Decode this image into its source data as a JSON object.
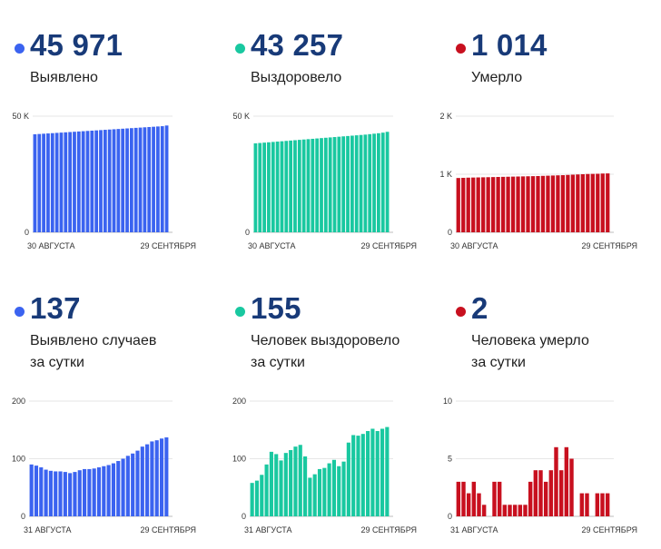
{
  "colors": {
    "blue": "#3b63f0",
    "green": "#19c8a0",
    "red": "#c8101f",
    "number": "#183a78"
  },
  "chart_data": [
    {
      "id": "c0",
      "type": "bar",
      "color_key": "blue",
      "headline": "45 971",
      "label_lines": [
        "Выявлено"
      ],
      "ylim": [
        0,
        50000
      ],
      "y_ticks": [
        0,
        50000
      ],
      "y_tick_labels": [
        "0",
        "50 K"
      ],
      "x_tick_labels": [
        "30 АВГУСТА",
        "29 СЕНТЯБРЯ"
      ],
      "values": [
        42200,
        42320,
        42440,
        42560,
        42680,
        42800,
        42920,
        43040,
        43160,
        43280,
        43400,
        43520,
        43640,
        43760,
        43880,
        44000,
        44120,
        44240,
        44360,
        44480,
        44600,
        44720,
        44840,
        44960,
        45080,
        45200,
        45320,
        45440,
        45560,
        45680,
        45971
      ]
    },
    {
      "id": "c1",
      "type": "bar",
      "color_key": "green",
      "headline": "43 257",
      "label_lines": [
        "Выздоровело"
      ],
      "ylim": [
        0,
        50000
      ],
      "y_ticks": [
        0,
        50000
      ],
      "y_tick_labels": [
        "0",
        "50 K"
      ],
      "x_tick_labels": [
        "30 АВГУСТА",
        "29 СЕНТЯБРЯ"
      ],
      "values": [
        38300,
        38450,
        38600,
        38750,
        38900,
        39050,
        39200,
        39350,
        39500,
        39650,
        39800,
        39950,
        40100,
        40250,
        40400,
        40550,
        40700,
        40850,
        41000,
        41150,
        41300,
        41450,
        41600,
        41750,
        41900,
        42050,
        42250,
        42450,
        42650,
        42900,
        43257
      ]
    },
    {
      "id": "c2",
      "type": "bar",
      "color_key": "red",
      "headline": "1 014",
      "label_lines": [
        "Умерло"
      ],
      "ylim": [
        0,
        2000
      ],
      "y_ticks": [
        0,
        1000,
        2000
      ],
      "y_tick_labels": [
        "0",
        "1 K",
        "2 K"
      ],
      "x_tick_labels": [
        "30 АВГУСТА",
        "29 СЕНТЯБРЯ"
      ],
      "values": [
        935,
        938,
        941,
        943,
        945,
        947,
        949,
        951,
        953,
        955,
        957,
        959,
        961,
        963,
        965,
        967,
        969,
        972,
        975,
        978,
        981,
        984,
        988,
        992,
        996,
        1000,
        1004,
        1006,
        1008,
        1012,
        1014
      ]
    },
    {
      "id": "c3",
      "type": "bar",
      "color_key": "blue",
      "headline": "137",
      "label_lines": [
        "Выявлено случаев",
        "за сутки"
      ],
      "ylim": [
        0,
        200
      ],
      "y_ticks": [
        0,
        100,
        200
      ],
      "y_tick_labels": [
        "0",
        "100",
        "200"
      ],
      "x_tick_labels": [
        "31 АВГУСТА",
        "29 СЕНТЯБРЯ"
      ],
      "values": [
        90,
        88,
        85,
        81,
        79,
        78,
        78,
        77,
        75,
        77,
        80,
        82,
        82,
        83,
        85,
        87,
        89,
        92,
        96,
        100,
        105,
        109,
        114,
        121,
        125,
        130,
        132,
        135,
        137
      ]
    },
    {
      "id": "c4",
      "type": "bar",
      "color_key": "green",
      "headline": "155",
      "label_lines": [
        "Человек выздоровело",
        "за сутки"
      ],
      "ylim": [
        0,
        200
      ],
      "y_ticks": [
        0,
        100,
        200
      ],
      "y_tick_labels": [
        "0",
        "100",
        "200"
      ],
      "x_tick_labels": [
        "31 АВГУСТА",
        "29 СЕНТЯБРЯ"
      ],
      "values": [
        58,
        62,
        72,
        90,
        112,
        108,
        97,
        110,
        115,
        121,
        124,
        104,
        67,
        73,
        82,
        84,
        92,
        98,
        87,
        95,
        128,
        141,
        140,
        143,
        148,
        152,
        148,
        152,
        155
      ]
    },
    {
      "id": "c5",
      "type": "bar",
      "color_key": "red",
      "headline": "2",
      "label_lines": [
        "Человека умерло",
        "за сутки"
      ],
      "ylim": [
        0,
        10
      ],
      "y_ticks": [
        0,
        5,
        10
      ],
      "y_tick_labels": [
        "0",
        "5",
        "10"
      ],
      "x_tick_labels": [
        "31 АВГУСТА",
        "29 СЕНТЯБРЯ"
      ],
      "values": [
        3,
        3,
        2,
        3,
        2,
        1,
        0,
        3,
        3,
        1,
        1,
        1,
        1,
        1,
        3,
        4,
        4,
        3,
        4,
        6,
        4,
        6,
        5,
        0,
        2,
        2,
        0,
        2,
        2,
        2
      ]
    }
  ]
}
